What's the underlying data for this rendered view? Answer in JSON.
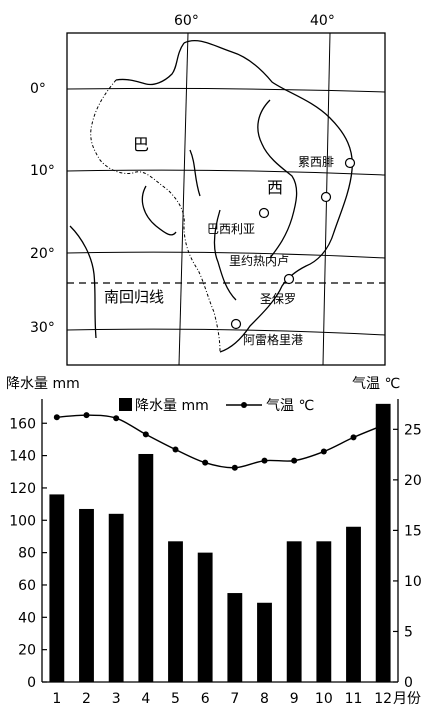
{
  "map": {
    "lon_labels": [
      "60°",
      "40°"
    ],
    "lat_labels": [
      "0°",
      "10°",
      "20°",
      "30°"
    ],
    "region_labels": [
      "巴",
      "西"
    ],
    "tropic_label": "南回归线",
    "cities": [
      "累西腓",
      "巴西利亚",
      "里约热内卢",
      "圣保罗",
      "阿雷格里港"
    ]
  },
  "chart_data": {
    "type": "bar",
    "categories": [
      "1",
      "2",
      "3",
      "4",
      "5",
      "6",
      "7",
      "8",
      "9",
      "10",
      "11",
      "12"
    ],
    "x_unit_label": "月份",
    "series": [
      {
        "name": "降水量 mm",
        "type": "bar",
        "axis": "left",
        "values": [
          116,
          107,
          104,
          141,
          87,
          80,
          55,
          49,
          87,
          87,
          96,
          172
        ]
      },
      {
        "name": "气温 ℃",
        "type": "line",
        "axis": "right",
        "values": [
          26.2,
          26.4,
          26.1,
          24.5,
          23.0,
          21.7,
          21.2,
          21.9,
          21.9,
          22.8,
          24.2,
          25.4
        ]
      }
    ],
    "ylabel_left": "降水量 mm",
    "ylabel_right": "气温 ℃",
    "ylim_left": [
      0,
      175
    ],
    "ylim_right": [
      0,
      28
    ],
    "yticks_left": [
      0,
      20,
      40,
      60,
      80,
      100,
      120,
      140,
      160
    ],
    "yticks_right": [
      0,
      5,
      10,
      15,
      20,
      25
    ],
    "legend_position": "top-center"
  }
}
